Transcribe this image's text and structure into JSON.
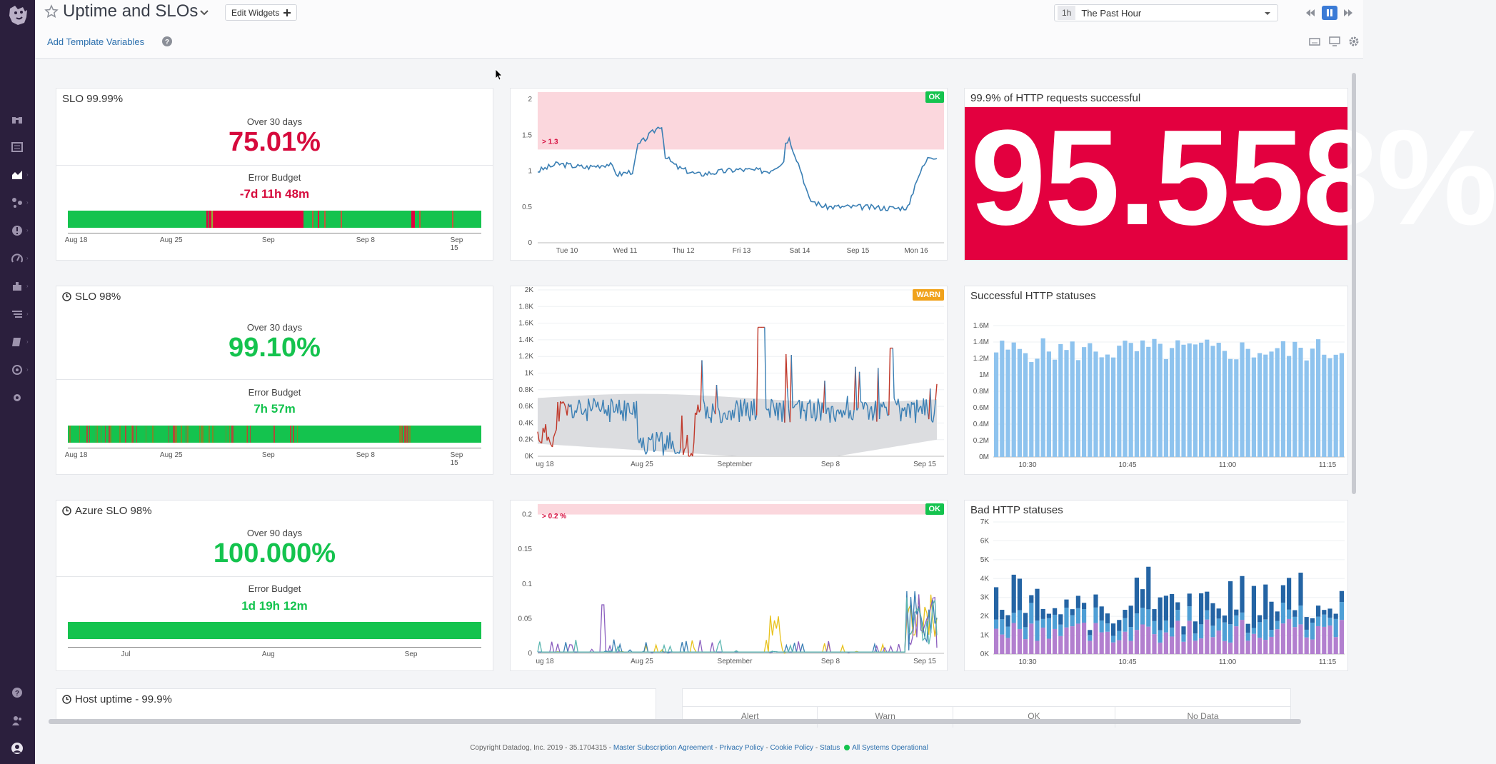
{
  "header": {
    "title": "Uptime and SLOs",
    "edit_widgets": "Edit Widgets",
    "add_template_variables": "Add Template Variables",
    "timeframe_short": "1h",
    "timeframe_label": "The Past Hour"
  },
  "slo_widgets": [
    {
      "title": "SLO 99.99%",
      "period": "Over 30 days",
      "value": "75.01%",
      "budget_label": "Error Budget",
      "budget": "-7d 11h 48m",
      "value_color": "#d60a3c",
      "axis": [
        "Aug 18",
        "Aug 25",
        "Sep",
        "Sep 8",
        "Sep 15"
      ]
    },
    {
      "title": "SLO 98%",
      "period": "Over 30 days",
      "value": "99.10%",
      "budget_label": "Error Budget",
      "budget": "7h 57m",
      "value_color": "#14c34e",
      "axis": [
        "Aug 18",
        "Aug 25",
        "Sep",
        "Sep 8",
        "Sep 15"
      ]
    },
    {
      "title": "Azure SLO 98%",
      "period": "Over 90 days",
      "value": "100.000%",
      "budget_label": "Error Budget",
      "budget": "1d 19h 12m",
      "value_color": "#14c34e",
      "axis": [
        "Jul",
        "Aug",
        "Sep"
      ]
    }
  ],
  "monitor_widgets": [
    {
      "status": "OK",
      "status_color": "#14c34e",
      "threshold": "> 1.3",
      "y_ticks": [
        "0",
        "0.5",
        "1",
        "1.5",
        "2"
      ],
      "x_ticks": [
        "Tue 10",
        "Wed 11",
        "Thu 12",
        "Fri 13",
        "Sat 14",
        "Sep 15",
        "Mon 16"
      ]
    },
    {
      "status": "WARN",
      "status_color": "#f0a21c",
      "y_ticks": [
        "0K",
        "0.2K",
        "0.4K",
        "0.6K",
        "0.8K",
        "1K",
        "1.2K",
        "1.4K",
        "1.6K",
        "1.8K",
        "2K"
      ],
      "x_ticks": [
        "ug 18",
        "Aug 25",
        "September",
        "Sep 8",
        "Sep 15"
      ]
    },
    {
      "status": "OK",
      "status_color": "#14c34e",
      "threshold": "> 0.2 %",
      "y_ticks": [
        "0",
        "0.05",
        "0.1",
        "0.15",
        "0.2"
      ],
      "x_ticks": [
        "ug 18",
        "Aug 25",
        "September",
        "Sep 8",
        "Sep 15"
      ]
    }
  ],
  "query_value": {
    "title": "99.9% of HTTP requests successful",
    "value": "95.558%",
    "background": "#e3003f"
  },
  "successful_statuses": {
    "title": "Successful HTTP statuses",
    "y_ticks": [
      "0M",
      "0.2M",
      "0.4M",
      "0.6M",
      "0.8M",
      "1M",
      "1.2M",
      "1.4M",
      "1.6M"
    ],
    "x_ticks": [
      "10:30",
      "10:45",
      "11:00",
      "11:15"
    ]
  },
  "bad_statuses": {
    "title": "Bad HTTP statuses",
    "y_ticks": [
      "0K",
      "1K",
      "2K",
      "3K",
      "4K",
      "5K",
      "6K",
      "7K"
    ],
    "x_ticks": [
      "10:30",
      "10:45",
      "11:00",
      "11:15"
    ]
  },
  "host_uptime": {
    "title": "Host uptime - 99.9%"
  },
  "table_headers": [
    "Alert",
    "Warn",
    "OK",
    "No Data"
  ],
  "footer": {
    "copyright": "Copyright Datadog, Inc. 2019 - 35.1704315 -",
    "links": [
      "Master Subscription Agreement",
      "Privacy Policy",
      "Cookie Policy",
      "Status"
    ],
    "status": "All Systems Operational"
  }
}
